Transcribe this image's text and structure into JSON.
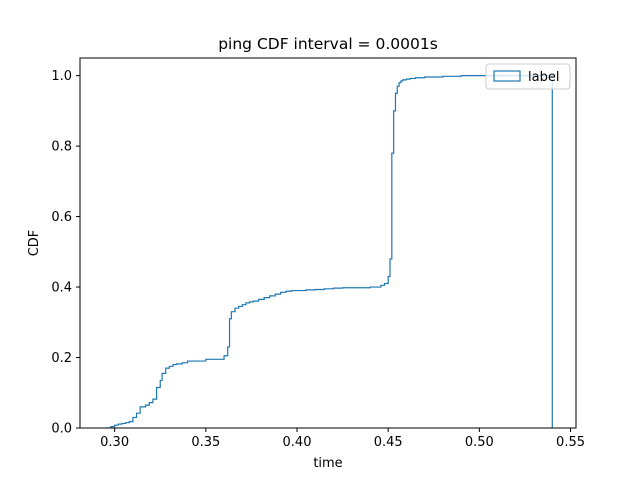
{
  "chart_data": {
    "type": "line",
    "title": "ping CDF interval = 0.0001s",
    "xlabel": "time",
    "ylabel": "CDF",
    "xlim": [
      0.281,
      0.553
    ],
    "ylim": [
      0,
      1.05
    ],
    "xticks": [
      0.3,
      0.35,
      0.4,
      0.45,
      0.5,
      0.55
    ],
    "xtick_labels": [
      "0.30",
      "0.35",
      "0.40",
      "0.45",
      "0.50",
      "0.55"
    ],
    "yticks": [
      0.0,
      0.2,
      0.4,
      0.6,
      0.8,
      1.0
    ],
    "ytick_labels": [
      "0.0",
      "0.2",
      "0.4",
      "0.6",
      "0.8",
      "1.0"
    ],
    "grid": false,
    "legend": {
      "position": "top-right"
    },
    "series": [
      {
        "name": "label",
        "color": "#1f77b4",
        "style": "step-histogram",
        "x": [
          0.295,
          0.298,
          0.3,
          0.302,
          0.304,
          0.306,
          0.308,
          0.31,
          0.312,
          0.314,
          0.317,
          0.319,
          0.321,
          0.323,
          0.325,
          0.326,
          0.328,
          0.33,
          0.332,
          0.334,
          0.337,
          0.34,
          0.35,
          0.36,
          0.362,
          0.363,
          0.364,
          0.366,
          0.368,
          0.37,
          0.372,
          0.374,
          0.376,
          0.379,
          0.382,
          0.385,
          0.388,
          0.391,
          0.394,
          0.397,
          0.4,
          0.405,
          0.41,
          0.415,
          0.42,
          0.425,
          0.44,
          0.446,
          0.448,
          0.45,
          0.451,
          0.452,
          0.453,
          0.454,
          0.455,
          0.456,
          0.457,
          0.458,
          0.46,
          0.462,
          0.465,
          0.47,
          0.48,
          0.49,
          0.54
        ],
        "y": [
          0.0,
          0.004,
          0.008,
          0.011,
          0.013,
          0.015,
          0.018,
          0.03,
          0.042,
          0.06,
          0.065,
          0.072,
          0.082,
          0.115,
          0.135,
          0.155,
          0.17,
          0.175,
          0.18,
          0.182,
          0.185,
          0.19,
          0.195,
          0.205,
          0.23,
          0.31,
          0.33,
          0.34,
          0.345,
          0.35,
          0.355,
          0.358,
          0.36,
          0.365,
          0.37,
          0.375,
          0.38,
          0.385,
          0.388,
          0.39,
          0.39,
          0.392,
          0.393,
          0.395,
          0.397,
          0.398,
          0.4,
          0.405,
          0.41,
          0.43,
          0.48,
          0.78,
          0.9,
          0.95,
          0.97,
          0.98,
          0.985,
          0.988,
          0.99,
          0.992,
          0.994,
          0.996,
          0.998,
          1.0,
          0.0
        ]
      }
    ]
  }
}
